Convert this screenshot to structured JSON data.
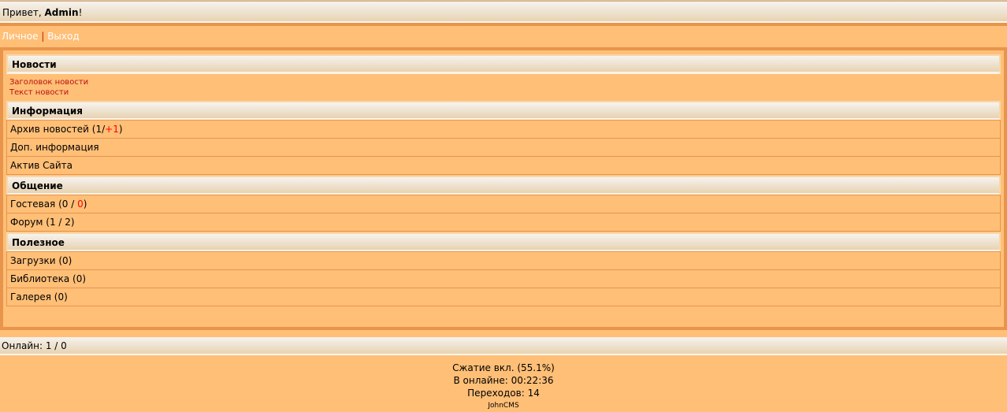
{
  "header": {
    "greeting": "Привет, ",
    "user": "Admin",
    "excl": "!"
  },
  "nav": {
    "personal": "Личное",
    "sep": "|",
    "logout": "Выход"
  },
  "sections": {
    "news": {
      "title": "Новости",
      "news_title": "Заголовок новости",
      "news_text": "Текст новости"
    },
    "info": {
      "title": "Информация",
      "archive": "Архив новостей (1/",
      "archive_new": "+1",
      "archive_end": ")",
      "extra": "Доп. информация",
      "active": "Актив Сайта"
    },
    "communication": {
      "title": "Общение",
      "guest": "Гостевая (0 / ",
      "guest_new": "0",
      "guest_end": ")",
      "forum": "Форум (1 / 2)"
    },
    "useful": {
      "title": "Полезное",
      "downloads": "Загрузки (0)",
      "library": "Библиотека (0)",
      "gallery": "Галерея (0)"
    }
  },
  "online": "Онлайн: 1 / 0",
  "footer": {
    "compression": "Сжатие вкл. (55.1%)",
    "online_time": "В онлайне: 00:22:36",
    "transitions": "Переходов: 14",
    "cms": "JohnCMS"
  }
}
